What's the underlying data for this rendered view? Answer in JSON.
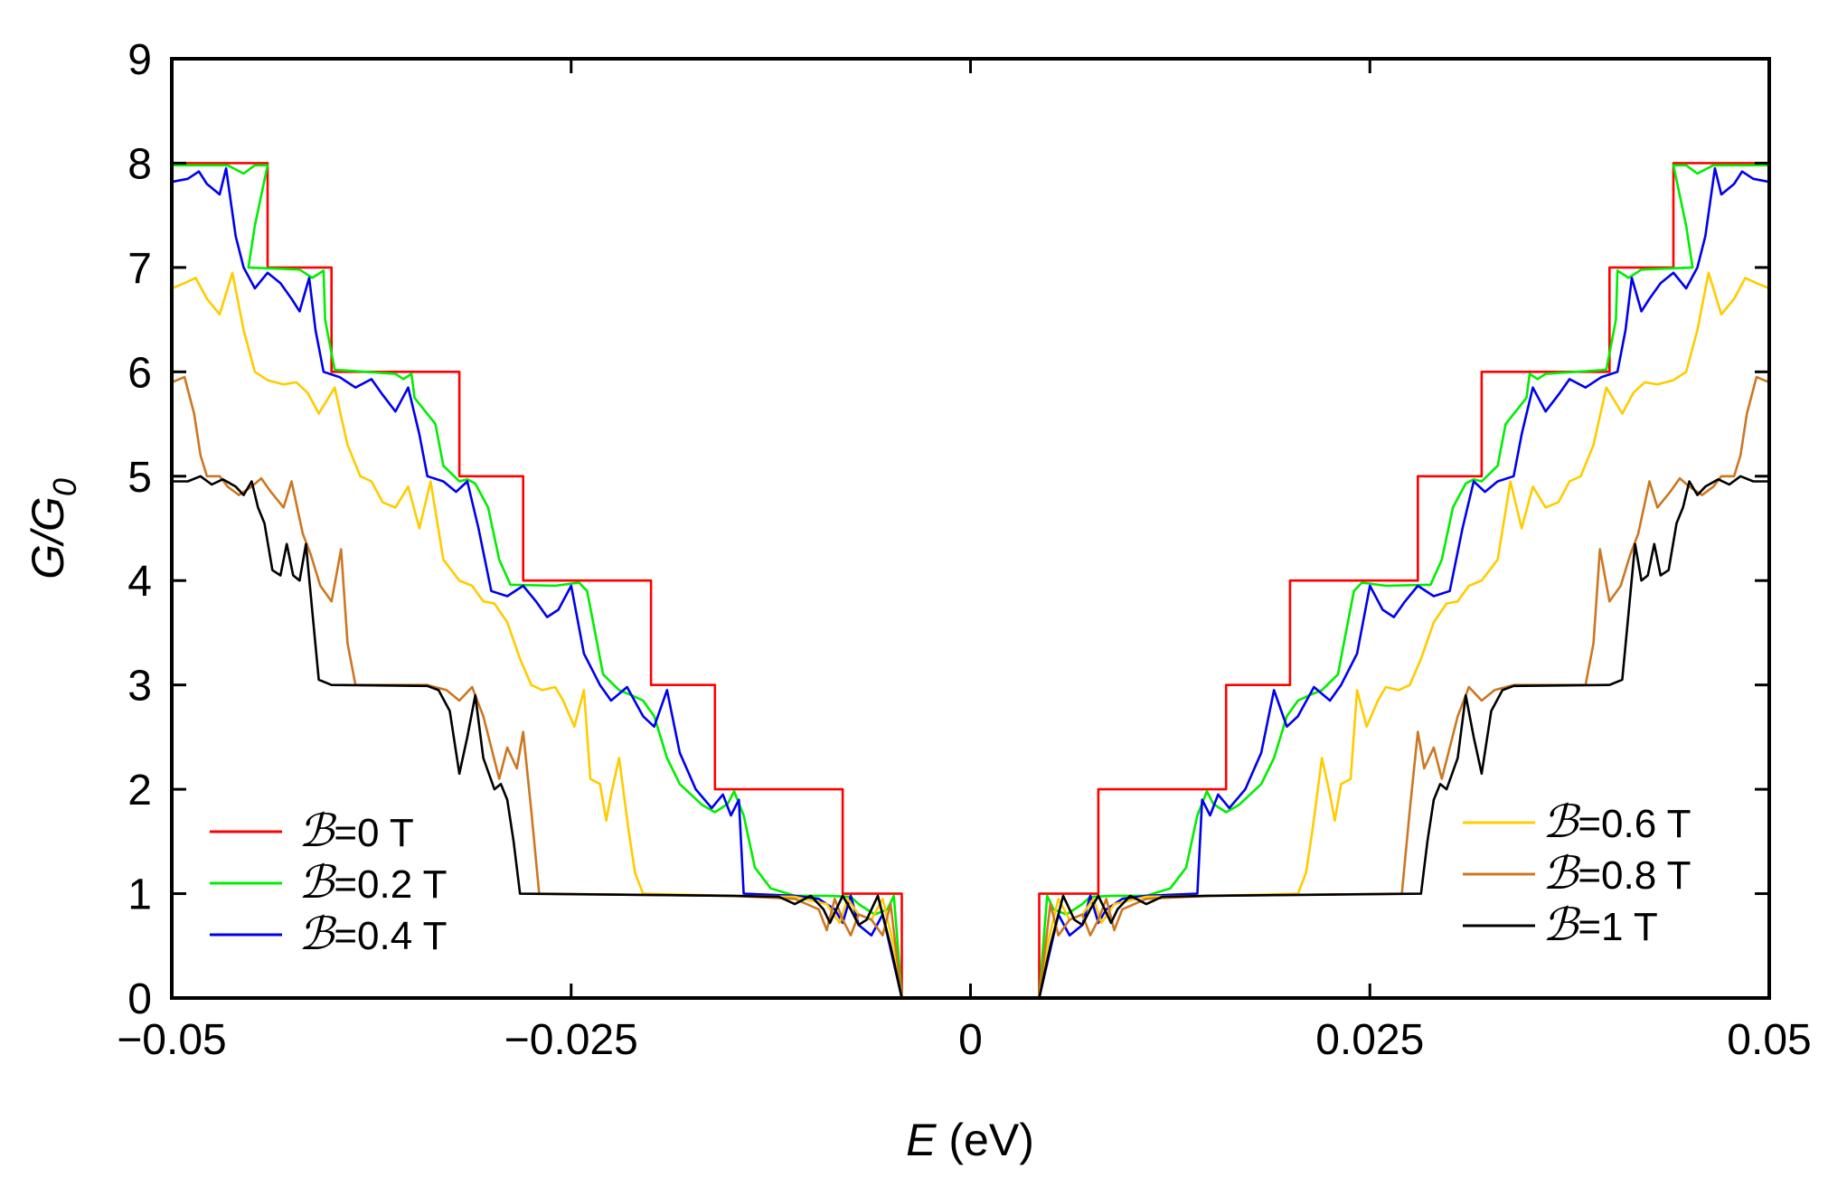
{
  "chart_data": {
    "type": "line",
    "title": "",
    "xlabel": {
      "symbol": "E",
      "unit": "(eV)"
    },
    "ylabel": {
      "symbol": "G/G",
      "subscript": "0"
    },
    "xlim": [
      -0.05,
      0.05
    ],
    "ylim": [
      0,
      9
    ],
    "xticks": [
      {
        "value": -0.05,
        "label": "−0.05"
      },
      {
        "value": -0.025,
        "label": "−0.025"
      },
      {
        "value": 0,
        "label": "0"
      },
      {
        "value": 0.025,
        "label": "0.025"
      },
      {
        "value": 0.05,
        "label": "0.05"
      }
    ],
    "yticks": [
      {
        "value": 0,
        "label": "0"
      },
      {
        "value": 1,
        "label": "1"
      },
      {
        "value": 2,
        "label": "2"
      },
      {
        "value": 3,
        "label": "3"
      },
      {
        "value": 4,
        "label": "4"
      },
      {
        "value": 5,
        "label": "5"
      },
      {
        "value": 6,
        "label": "6"
      },
      {
        "value": 7,
        "label": "7"
      },
      {
        "value": 8,
        "label": "8"
      },
      {
        "value": 9,
        "label": "9"
      }
    ],
    "grid": false,
    "symmetric_about_zero": true,
    "series": [
      {
        "name": "B=0 T",
        "symbol": "ℬ",
        "label": "=0 T",
        "legend": "bottom-left",
        "color": "#ff0000",
        "points": [
          [
            -0.05,
            8
          ],
          [
            -0.044,
            8
          ],
          [
            -0.044,
            7
          ],
          [
            -0.04,
            7
          ],
          [
            -0.04,
            6
          ],
          [
            -0.032,
            6
          ],
          [
            -0.032,
            5
          ],
          [
            -0.028,
            5
          ],
          [
            -0.028,
            4
          ],
          [
            -0.02,
            4
          ],
          [
            -0.02,
            3
          ],
          [
            -0.016,
            3
          ],
          [
            -0.016,
            2
          ],
          [
            -0.008,
            2
          ],
          [
            -0.008,
            1
          ],
          [
            -0.0043,
            1
          ],
          [
            -0.0043,
            0
          ]
        ]
      },
      {
        "name": "B=0.2 T",
        "symbol": "ℬ",
        "label": "=0.2 T",
        "legend": "bottom-left",
        "color": "#00ee00",
        "points": [
          [
            -0.05,
            7.98
          ],
          [
            -0.0465,
            7.98
          ],
          [
            -0.0455,
            7.9
          ],
          [
            -0.0448,
            7.98
          ],
          [
            -0.044,
            7.98
          ],
          [
            -0.0448,
            7.4
          ],
          [
            -0.0452,
            7.0
          ],
          [
            -0.042,
            6.98
          ],
          [
            -0.0412,
            6.9
          ],
          [
            -0.0405,
            6.97
          ],
          [
            -0.0404,
            6.5
          ],
          [
            -0.0398,
            6.02
          ],
          [
            -0.036,
            5.98
          ],
          [
            -0.0355,
            5.93
          ],
          [
            -0.035,
            5.98
          ],
          [
            -0.0348,
            5.75
          ],
          [
            -0.0335,
            5.5
          ],
          [
            -0.033,
            5.1
          ],
          [
            -0.032,
            4.95
          ],
          [
            -0.0315,
            4.97
          ],
          [
            -0.031,
            4.93
          ],
          [
            -0.0302,
            4.7
          ],
          [
            -0.0295,
            4.2
          ],
          [
            -0.0288,
            3.96
          ],
          [
            -0.026,
            3.95
          ],
          [
            -0.0245,
            3.98
          ],
          [
            -0.024,
            3.9
          ],
          [
            -0.0235,
            3.5
          ],
          [
            -0.023,
            3.1
          ],
          [
            -0.022,
            2.95
          ],
          [
            -0.0212,
            2.9
          ],
          [
            -0.0205,
            2.85
          ],
          [
            -0.0198,
            2.7
          ],
          [
            -0.019,
            2.3
          ],
          [
            -0.0182,
            2.05
          ],
          [
            -0.0168,
            1.85
          ],
          [
            -0.016,
            1.78
          ],
          [
            -0.0152,
            1.86
          ],
          [
            -0.0148,
            1.98
          ],
          [
            -0.0142,
            1.75
          ],
          [
            -0.0135,
            1.25
          ],
          [
            -0.0125,
            1.05
          ],
          [
            -0.011,
            0.98
          ],
          [
            -0.009,
            0.98
          ],
          [
            -0.0075,
            0.97
          ],
          [
            -0.007,
            0.9
          ],
          [
            -0.006,
            0.8
          ],
          [
            -0.0052,
            0.85
          ],
          [
            -0.0048,
            0.98
          ],
          [
            -0.0046,
            0.6
          ],
          [
            -0.0043,
            0
          ]
        ]
      },
      {
        "name": "B=0.4 T",
        "symbol": "ℬ",
        "label": "=0.4 T",
        "legend": "bottom-left",
        "color": "#0000ee",
        "points": [
          [
            -0.05,
            7.82
          ],
          [
            -0.049,
            7.85
          ],
          [
            -0.0483,
            7.92
          ],
          [
            -0.0478,
            7.8
          ],
          [
            -0.047,
            7.7
          ],
          [
            -0.0466,
            7.95
          ],
          [
            -0.046,
            7.3
          ],
          [
            -0.0455,
            7.0
          ],
          [
            -0.0448,
            6.8
          ],
          [
            -0.044,
            6.95
          ],
          [
            -0.0432,
            6.85
          ],
          [
            -0.0425,
            6.7
          ],
          [
            -0.042,
            6.58
          ],
          [
            -0.0414,
            6.9
          ],
          [
            -0.041,
            6.4
          ],
          [
            -0.0405,
            6.0
          ],
          [
            -0.0395,
            5.95
          ],
          [
            -0.0385,
            5.85
          ],
          [
            -0.0375,
            5.93
          ],
          [
            -0.0368,
            5.78
          ],
          [
            -0.036,
            5.62
          ],
          [
            -0.0352,
            5.85
          ],
          [
            -0.0345,
            5.4
          ],
          [
            -0.034,
            5.0
          ],
          [
            -0.033,
            4.95
          ],
          [
            -0.0322,
            4.85
          ],
          [
            -0.0315,
            4.95
          ],
          [
            -0.0308,
            4.5
          ],
          [
            -0.03,
            3.9
          ],
          [
            -0.029,
            3.85
          ],
          [
            -0.028,
            3.95
          ],
          [
            -0.0272,
            3.8
          ],
          [
            -0.0265,
            3.65
          ],
          [
            -0.0258,
            3.72
          ],
          [
            -0.025,
            3.95
          ],
          [
            -0.0242,
            3.3
          ],
          [
            -0.0232,
            3.0
          ],
          [
            -0.0225,
            2.85
          ],
          [
            -0.0215,
            2.98
          ],
          [
            -0.0205,
            2.7
          ],
          [
            -0.0198,
            2.6
          ],
          [
            -0.019,
            2.95
          ],
          [
            -0.0182,
            2.35
          ],
          [
            -0.0172,
            2.0
          ],
          [
            -0.0162,
            1.82
          ],
          [
            -0.0155,
            1.95
          ],
          [
            -0.015,
            1.75
          ],
          [
            -0.0145,
            1.9
          ],
          [
            -0.0142,
            1.0
          ],
          [
            -0.011,
            0.98
          ],
          [
            -0.0095,
            0.95
          ],
          [
            -0.0085,
            0.85
          ],
          [
            -0.008,
            0.72
          ],
          [
            -0.0075,
            0.98
          ],
          [
            -0.007,
            0.7
          ],
          [
            -0.0062,
            0.6
          ],
          [
            -0.0055,
            0.8
          ],
          [
            -0.0043,
            0
          ]
        ]
      },
      {
        "name": "B=0.6 T",
        "symbol": "ℬ",
        "label": "=0.6 T",
        "legend": "bottom-right",
        "color": "#ffcc00",
        "points": [
          [
            -0.05,
            6.8
          ],
          [
            -0.0492,
            6.85
          ],
          [
            -0.0485,
            6.9
          ],
          [
            -0.0478,
            6.7
          ],
          [
            -0.047,
            6.55
          ],
          [
            -0.0462,
            6.95
          ],
          [
            -0.0455,
            6.4
          ],
          [
            -0.0448,
            6.0
          ],
          [
            -0.044,
            5.92
          ],
          [
            -0.043,
            5.88
          ],
          [
            -0.0422,
            5.9
          ],
          [
            -0.0415,
            5.8
          ],
          [
            -0.0408,
            5.6
          ],
          [
            -0.0398,
            5.85
          ],
          [
            -0.039,
            5.3
          ],
          [
            -0.0382,
            5.0
          ],
          [
            -0.0375,
            4.95
          ],
          [
            -0.0368,
            4.75
          ],
          [
            -0.036,
            4.7
          ],
          [
            -0.0352,
            4.9
          ],
          [
            -0.0345,
            4.5
          ],
          [
            -0.0338,
            4.95
          ],
          [
            -0.033,
            4.2
          ],
          [
            -0.032,
            4.0
          ],
          [
            -0.0312,
            3.95
          ],
          [
            -0.0305,
            3.8
          ],
          [
            -0.0298,
            3.78
          ],
          [
            -0.029,
            3.6
          ],
          [
            -0.0282,
            3.25
          ],
          [
            -0.0275,
            3.0
          ],
          [
            -0.0268,
            2.95
          ],
          [
            -0.026,
            2.98
          ],
          [
            -0.0255,
            2.85
          ],
          [
            -0.0248,
            2.6
          ],
          [
            -0.0242,
            2.95
          ],
          [
            -0.0238,
            2.1
          ],
          [
            -0.0232,
            2.05
          ],
          [
            -0.0228,
            1.7
          ],
          [
            -0.0225,
            1.95
          ],
          [
            -0.022,
            2.3
          ],
          [
            -0.0214,
            1.6
          ],
          [
            -0.021,
            1.2
          ],
          [
            -0.0205,
            1.0
          ],
          [
            -0.015,
            0.98
          ],
          [
            -0.011,
            0.97
          ],
          [
            -0.009,
            0.9
          ],
          [
            -0.0082,
            0.72
          ],
          [
            -0.0077,
            0.95
          ],
          [
            -0.007,
            0.8
          ],
          [
            -0.0062,
            0.75
          ],
          [
            -0.0055,
            0.95
          ],
          [
            -0.0048,
            0.5
          ],
          [
            -0.0043,
            0
          ]
        ]
      },
      {
        "name": "B=0.8 T",
        "symbol": "ℬ",
        "label": "=0.8 T",
        "legend": "bottom-right",
        "color": "#cc7722",
        "points": [
          [
            -0.05,
            5.9
          ],
          [
            -0.0492,
            5.95
          ],
          [
            -0.0486,
            5.6
          ],
          [
            -0.0482,
            5.2
          ],
          [
            -0.0478,
            5.0
          ],
          [
            -0.047,
            5.0
          ],
          [
            -0.0465,
            4.9
          ],
          [
            -0.0458,
            4.82
          ],
          [
            -0.045,
            4.9
          ],
          [
            -0.0444,
            4.98
          ],
          [
            -0.0438,
            4.85
          ],
          [
            -0.043,
            4.7
          ],
          [
            -0.0425,
            4.95
          ],
          [
            -0.0418,
            4.45
          ],
          [
            -0.0413,
            4.25
          ],
          [
            -0.0407,
            3.95
          ],
          [
            -0.04,
            3.8
          ],
          [
            -0.0394,
            4.3
          ],
          [
            -0.039,
            3.4
          ],
          [
            -0.0385,
            3.0
          ],
          [
            -0.034,
            3.0
          ],
          [
            -0.0328,
            2.95
          ],
          [
            -0.032,
            2.85
          ],
          [
            -0.0312,
            2.98
          ],
          [
            -0.0305,
            2.7
          ],
          [
            -0.03,
            2.4
          ],
          [
            -0.0295,
            2.1
          ],
          [
            -0.029,
            2.4
          ],
          [
            -0.0284,
            2.2
          ],
          [
            -0.028,
            2.55
          ],
          [
            -0.0275,
            1.8
          ],
          [
            -0.027,
            1.0
          ],
          [
            -0.015,
            0.98
          ],
          [
            -0.011,
            0.95
          ],
          [
            -0.0095,
            0.85
          ],
          [
            -0.009,
            0.65
          ],
          [
            -0.0085,
            0.95
          ],
          [
            -0.008,
            0.75
          ],
          [
            -0.0075,
            0.6
          ],
          [
            -0.007,
            0.8
          ],
          [
            -0.0062,
            0.75
          ],
          [
            -0.0055,
            0.6
          ],
          [
            -0.005,
            0.9
          ],
          [
            -0.0043,
            0
          ]
        ]
      },
      {
        "name": "B=1 T",
        "symbol": "ℬ",
        "label": "=1 T",
        "legend": "bottom-right",
        "color": "#000000",
        "points": [
          [
            -0.05,
            4.95
          ],
          [
            -0.049,
            4.95
          ],
          [
            -0.0482,
            5.0
          ],
          [
            -0.0475,
            4.92
          ],
          [
            -0.0468,
            4.97
          ],
          [
            -0.046,
            4.9
          ],
          [
            -0.0455,
            4.82
          ],
          [
            -0.045,
            4.95
          ],
          [
            -0.0446,
            4.7
          ],
          [
            -0.0442,
            4.55
          ],
          [
            -0.0437,
            4.1
          ],
          [
            -0.0432,
            4.05
          ],
          [
            -0.0428,
            4.35
          ],
          [
            -0.0424,
            4.05
          ],
          [
            -0.042,
            4.0
          ],
          [
            -0.0416,
            4.35
          ],
          [
            -0.0412,
            3.7
          ],
          [
            -0.0408,
            3.05
          ],
          [
            -0.04,
            3.0
          ],
          [
            -0.034,
            2.99
          ],
          [
            -0.0333,
            2.95
          ],
          [
            -0.0326,
            2.75
          ],
          [
            -0.032,
            2.15
          ],
          [
            -0.0315,
            2.5
          ],
          [
            -0.031,
            2.9
          ],
          [
            -0.0305,
            2.3
          ],
          [
            -0.0298,
            2.0
          ],
          [
            -0.0294,
            2.05
          ],
          [
            -0.029,
            1.9
          ],
          [
            -0.0286,
            1.5
          ],
          [
            -0.0282,
            1.0
          ],
          [
            -0.015,
            0.98
          ],
          [
            -0.012,
            0.97
          ],
          [
            -0.011,
            0.9
          ],
          [
            -0.01,
            0.98
          ],
          [
            -0.0092,
            0.85
          ],
          [
            -0.0088,
            0.72
          ],
          [
            -0.008,
            0.98
          ],
          [
            -0.0075,
            0.85
          ],
          [
            -0.007,
            0.7
          ],
          [
            -0.0065,
            0.75
          ],
          [
            -0.0058,
            0.98
          ],
          [
            -0.005,
            0.5
          ],
          [
            -0.0043,
            0
          ]
        ]
      }
    ]
  }
}
